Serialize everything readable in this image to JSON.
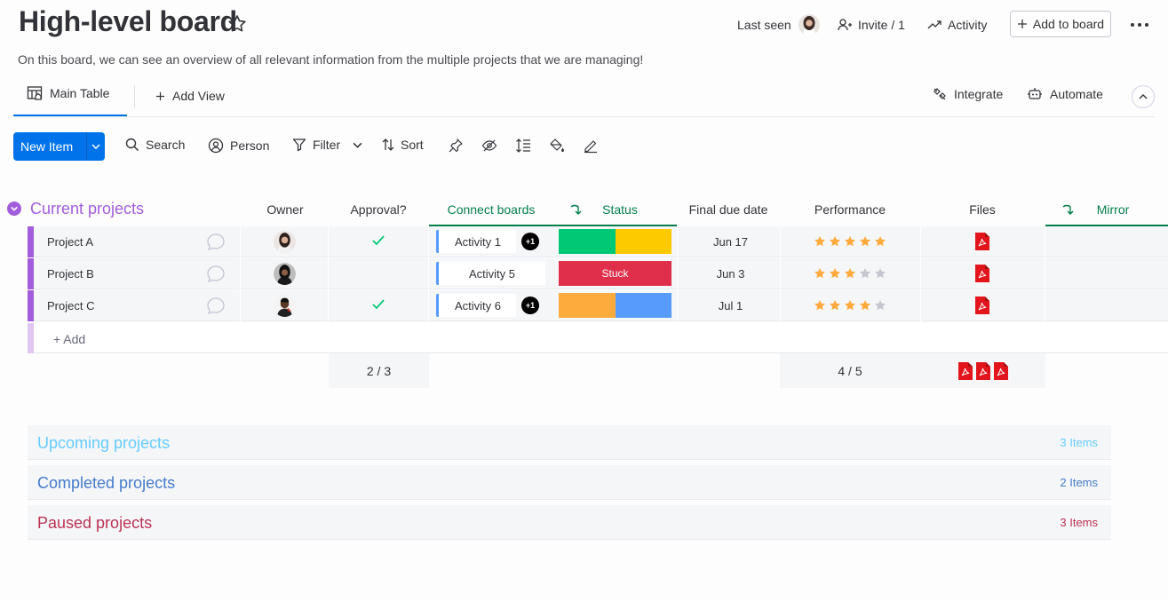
{
  "header": {
    "title": "High-level board",
    "description": "On this board, we can see an overview of all relevant information from the multiple projects that we are managing!",
    "last_seen_label": "Last seen",
    "invite_label": "Invite / 1",
    "activity_label": "Activity",
    "add_to_board_label": "Add to board"
  },
  "tabs": {
    "main_table_label": "Main Table",
    "add_view_label": "Add View",
    "integrate_label": "Integrate",
    "automate_label": "Automate"
  },
  "toolbar": {
    "new_item_label": "New Item",
    "search_label": "Search",
    "person_label": "Person",
    "filter_label": "Filter",
    "sort_label": "Sort"
  },
  "colors": {
    "accent": "#0073ea",
    "current_group": "#a25ddc",
    "upcoming_group": "#66ccff",
    "completed_group": "#579bfc",
    "paused_group": "#bb3354",
    "status_done": "#00c875",
    "status_working": "#fdca00",
    "status_stuck": "#df2f4a",
    "status_orange": "#fdab3d",
    "status_blue": "#579bfc",
    "star_on": "#fdab3d",
    "star_off": "#c5c7d0",
    "pdf_red": "#e2141c",
    "mirror_green": "#037f4c"
  },
  "group_current": {
    "title": "Current projects",
    "columns": {
      "owner": "Owner",
      "approval": "Approval?",
      "connect": "Connect boards",
      "status": "Status",
      "due": "Final due date",
      "performance": "Performance",
      "files": "Files",
      "mirror": "Mirror"
    },
    "rows": [
      {
        "name": "Project A",
        "approved": true,
        "connect": "Activity 1",
        "connect_extra": "+1",
        "status": [
          "done",
          "working"
        ],
        "status_label": "",
        "due": "Jun 17",
        "rating": 5
      },
      {
        "name": "Project B",
        "approved": false,
        "connect": "Activity 5",
        "connect_extra": "",
        "status": [
          "stuck"
        ],
        "status_label": "Stuck",
        "due": "Jun 3",
        "rating": 3
      },
      {
        "name": "Project C",
        "approved": true,
        "connect": "Activity 6",
        "connect_extra": "+1",
        "status": [
          "orange",
          "blue"
        ],
        "status_label": "",
        "due": "Jul 1",
        "rating": 4
      }
    ],
    "add_label": "+ Add",
    "summary_approval": "2 / 3",
    "summary_performance": "4 / 5"
  },
  "collapsed_groups": [
    {
      "title": "Upcoming projects",
      "count": "3 Items"
    },
    {
      "title": "Completed projects",
      "count": "2 Items"
    },
    {
      "title": "Paused projects",
      "count": "3 Items"
    }
  ]
}
